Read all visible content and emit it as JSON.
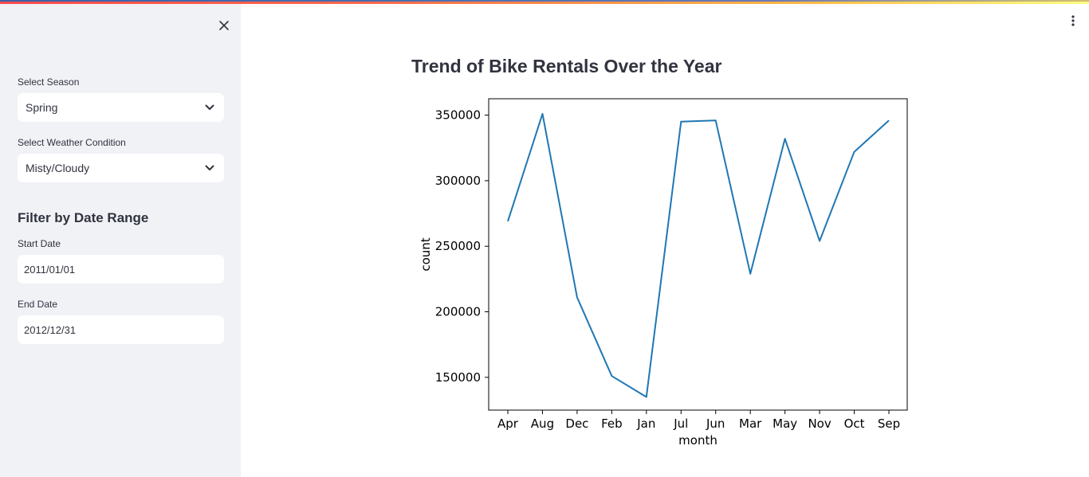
{
  "app": {
    "accent_colors": [
      "#3a5fa8",
      "#ff4b4b",
      "#ffbd45",
      "#fffd80"
    ]
  },
  "sidebar": {
    "close_icon": "close-icon",
    "season": {
      "label": "Select Season",
      "value": "Spring",
      "icon": "chevron-down-icon"
    },
    "weather": {
      "label": "Select Weather Condition",
      "value": "Misty/Cloudy",
      "icon": "chevron-down-icon"
    },
    "date_filter": {
      "heading": "Filter by Date Range",
      "start_label": "Start Date",
      "start_value": "2011/01/01",
      "end_label": "End Date",
      "end_value": "2012/12/31"
    }
  },
  "header": {
    "menu_icon": "kebab-menu-icon"
  },
  "main": {
    "title": "Trend of Bike Rentals Over the Year"
  },
  "chart_data": {
    "type": "line",
    "title": "",
    "xlabel": "month",
    "ylabel": "count",
    "categories": [
      "Apr",
      "Aug",
      "Dec",
      "Feb",
      "Jan",
      "Jul",
      "Jun",
      "Mar",
      "May",
      "Nov",
      "Oct",
      "Sep"
    ],
    "values": [
      269000,
      351000,
      211000,
      151000,
      135000,
      345000,
      346000,
      229000,
      332000,
      254000,
      322000,
      346000
    ],
    "ylim": [
      125000,
      362500
    ],
    "yticks": [
      "150000",
      "200000",
      "250000",
      "300000",
      "350000"
    ],
    "line_color": "#1f77b4",
    "grid": false,
    "legend": "none"
  }
}
